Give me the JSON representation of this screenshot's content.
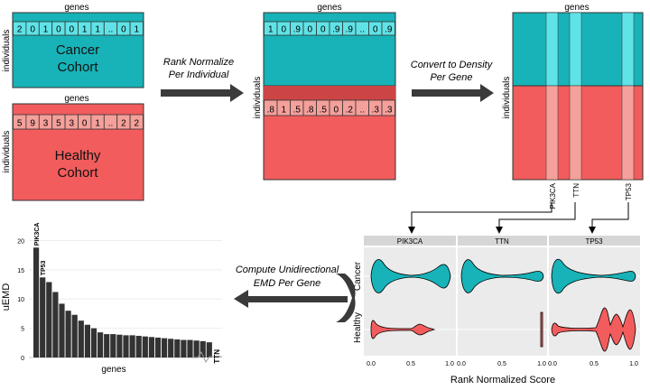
{
  "colors": {
    "teal": "#17b3b8",
    "teal_light": "#5fe3e7",
    "red": "#f25c5c",
    "red_light": "#f5a09b",
    "dark": "#333333",
    "panel_bg": "#ebebeb",
    "strip_bg": "#d6d6d6"
  },
  "labels": {
    "genes": "genes",
    "individuals": "individuals",
    "cancer_cohort": [
      "Cancer",
      "Cohort"
    ],
    "healthy_cohort": [
      "Healthy",
      "Cohort"
    ],
    "cancer": "Cancer",
    "healthy": "Healthy"
  },
  "rows": {
    "cancer_raw": [
      "2",
      "0",
      "1",
      "0",
      "0",
      "1",
      "1",
      "..",
      "0",
      "1"
    ],
    "healthy_raw": [
      "5",
      "9",
      "3",
      "5",
      "3",
      "0",
      "1",
      "..",
      "2",
      "2"
    ],
    "cancer_norm": [
      "1",
      "0",
      ".9",
      "0",
      "0",
      ".9",
      ".9",
      "..",
      "0",
      ".9"
    ],
    "healthy_norm": [
      ".8",
      "1",
      ".5",
      ".8",
      ".5",
      "0",
      ".2",
      "..",
      ".3",
      ".3"
    ]
  },
  "steps": {
    "rank_normalize": [
      "Rank Normalize",
      "Per Individual"
    ],
    "convert_density": [
      "Convert to Density",
      "Per Gene"
    ],
    "compute_emd": [
      "Compute Unidirectional",
      "EMD Per Gene"
    ]
  },
  "density_genes": [
    "PIK3CA",
    "TTN",
    "TP53"
  ],
  "violin": {
    "panels": [
      "PIK3CA",
      "TTN",
      "TP53"
    ],
    "x_ticks": [
      "0.0",
      "0.5",
      "1.0"
    ],
    "xlabel": "Rank Normalized Score",
    "row_labels": [
      "Cancer",
      "Healthy"
    ]
  },
  "chart_data": {
    "type": "bar",
    "xlabel": "genes",
    "ylabel": "uEMD",
    "ylim": [
      0,
      21
    ],
    "yticks": [
      0,
      5,
      10,
      15,
      20
    ],
    "values": [
      18.8,
      13.7,
      12.9,
      11.2,
      9.2,
      8.0,
      7.3,
      6.3,
      5.6,
      5.0,
      4.3,
      4.0,
      4.0,
      3.9,
      3.8,
      3.8,
      3.7,
      3.6,
      3.5,
      3.4,
      3.3,
      3.2,
      3.1,
      3.0,
      3.0,
      2.9,
      2.8,
      2.6
    ],
    "bar_labels": [
      {
        "index": 0,
        "text": "PIK3CA"
      },
      {
        "index": 1,
        "text": "TP53"
      }
    ],
    "tail_label": "TTN"
  }
}
